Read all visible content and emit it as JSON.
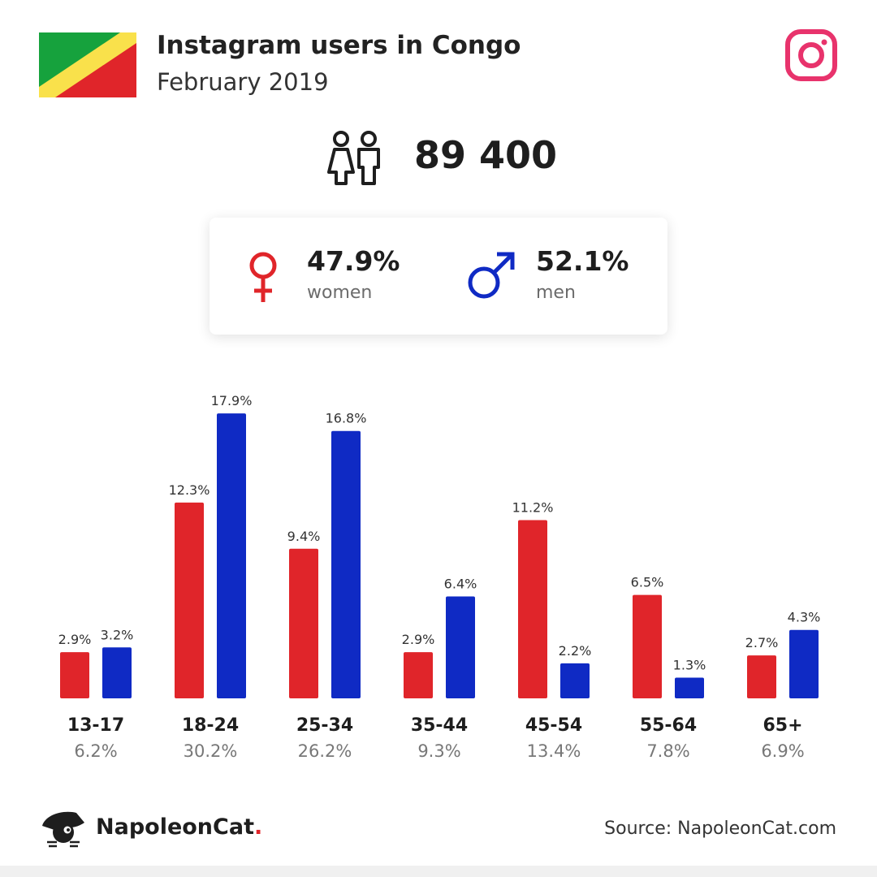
{
  "header": {
    "title": "Instagram users in Congo",
    "subtitle": "February 2019"
  },
  "total_users": "89 400",
  "gender": {
    "women": {
      "pct": "47.9%",
      "label": "women",
      "color": "#e0252a"
    },
    "men": {
      "pct": "52.1%",
      "label": "men",
      "color": "#0f2ac4"
    }
  },
  "footer": {
    "brand_name": "NapoleonCat",
    "brand_dot": ".",
    "source": "Source: NapoleonCat.com"
  },
  "icons": {
    "flag": "congo-flag-icon",
    "instagram": "instagram-icon",
    "people": "people-icon",
    "female": "female-symbol-icon",
    "male": "male-symbol-icon",
    "logo": "napoleoncat-logo-icon"
  },
  "colors": {
    "women": "#e0252a",
    "men": "#0f2ac4",
    "flag_green": "#16a23d",
    "flag_yellow": "#f9e14b",
    "flag_red": "#e0252a",
    "instagram": "#e8336c"
  },
  "chart_data": {
    "type": "bar",
    "categories": [
      "13-17",
      "18-24",
      "25-34",
      "35-44",
      "45-54",
      "55-64",
      "65+"
    ],
    "category_totals": [
      "6.2%",
      "30.2%",
      "26.2%",
      "9.3%",
      "13.4%",
      "7.8%",
      "6.9%"
    ],
    "series": [
      {
        "name": "women",
        "color": "#e0252a",
        "values": [
          2.9,
          12.3,
          9.4,
          2.9,
          11.2,
          6.5,
          2.7
        ]
      },
      {
        "name": "men",
        "color": "#0f2ac4",
        "values": [
          3.2,
          17.9,
          16.8,
          6.4,
          2.2,
          1.3,
          4.3
        ]
      }
    ],
    "value_suffix": "%",
    "ylim": [
      0,
      20
    ],
    "grid": false,
    "xlabel": "",
    "ylabel": ""
  }
}
